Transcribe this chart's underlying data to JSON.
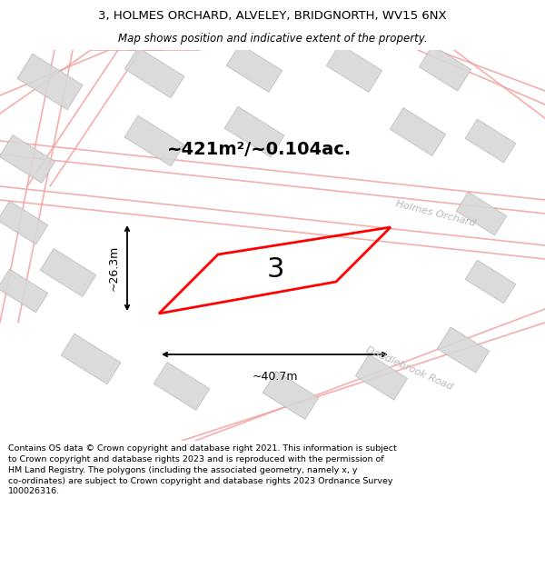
{
  "title": "3, HOLMES ORCHARD, ALVELEY, BRIDGNORTH, WV15 6NX",
  "subtitle": "Map shows position and indicative extent of the property.",
  "area_label": "~421m²/~0.104ac.",
  "plot_number": "3",
  "width_label": "~40.7m",
  "height_label": "~26.3m",
  "footer": "Contains OS data © Crown copyright and database right 2021. This information is subject to Crown copyright and database rights 2023 and is reproduced with the permission of HM Land Registry. The polygons (including the associated geometry, namely x, y co-ordinates) are subject to Crown copyright and database rights 2023 Ordnance Survey 100026316.",
  "bg_color": "#ffffff",
  "map_bg": "#ffffff",
  "road_color": "#f4a0a0",
  "building_color": "#d8d8d8",
  "building_border": "#bbbbbb",
  "plot_color": "#ff0000",
  "road_label_color": "#b0b0b0",
  "road_label_holmes": "Holmes Orchard",
  "road_label_daddlebrook": "Daddlebrook Road"
}
